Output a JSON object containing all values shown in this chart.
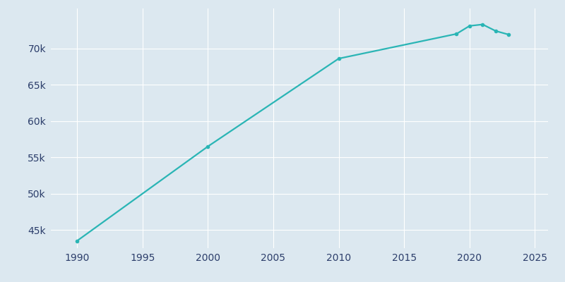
{
  "years": [
    1990,
    2000,
    2010,
    2019,
    2020,
    2021,
    2022,
    2023
  ],
  "population": [
    43500,
    56500,
    68600,
    72000,
    73100,
    73300,
    72400,
    71900
  ],
  "line_color": "#2ab5b5",
  "marker_style": "o",
  "marker_size": 3,
  "background_color": "#dce8f0",
  "grid_color": "#ffffff",
  "xlim": [
    1988,
    2026
  ],
  "ylim": [
    42500,
    75500
  ],
  "xticks": [
    1990,
    1995,
    2000,
    2005,
    2010,
    2015,
    2020,
    2025
  ],
  "yticks": [
    45000,
    50000,
    55000,
    60000,
    65000,
    70000
  ],
  "ytick_labels": [
    "45k",
    "50k",
    "55k",
    "60k",
    "65k",
    "70k"
  ],
  "tick_color": "#2c3e6b",
  "label_fontsize": 10,
  "figsize": [
    8.0,
    4.0
  ],
  "dpi": 100
}
